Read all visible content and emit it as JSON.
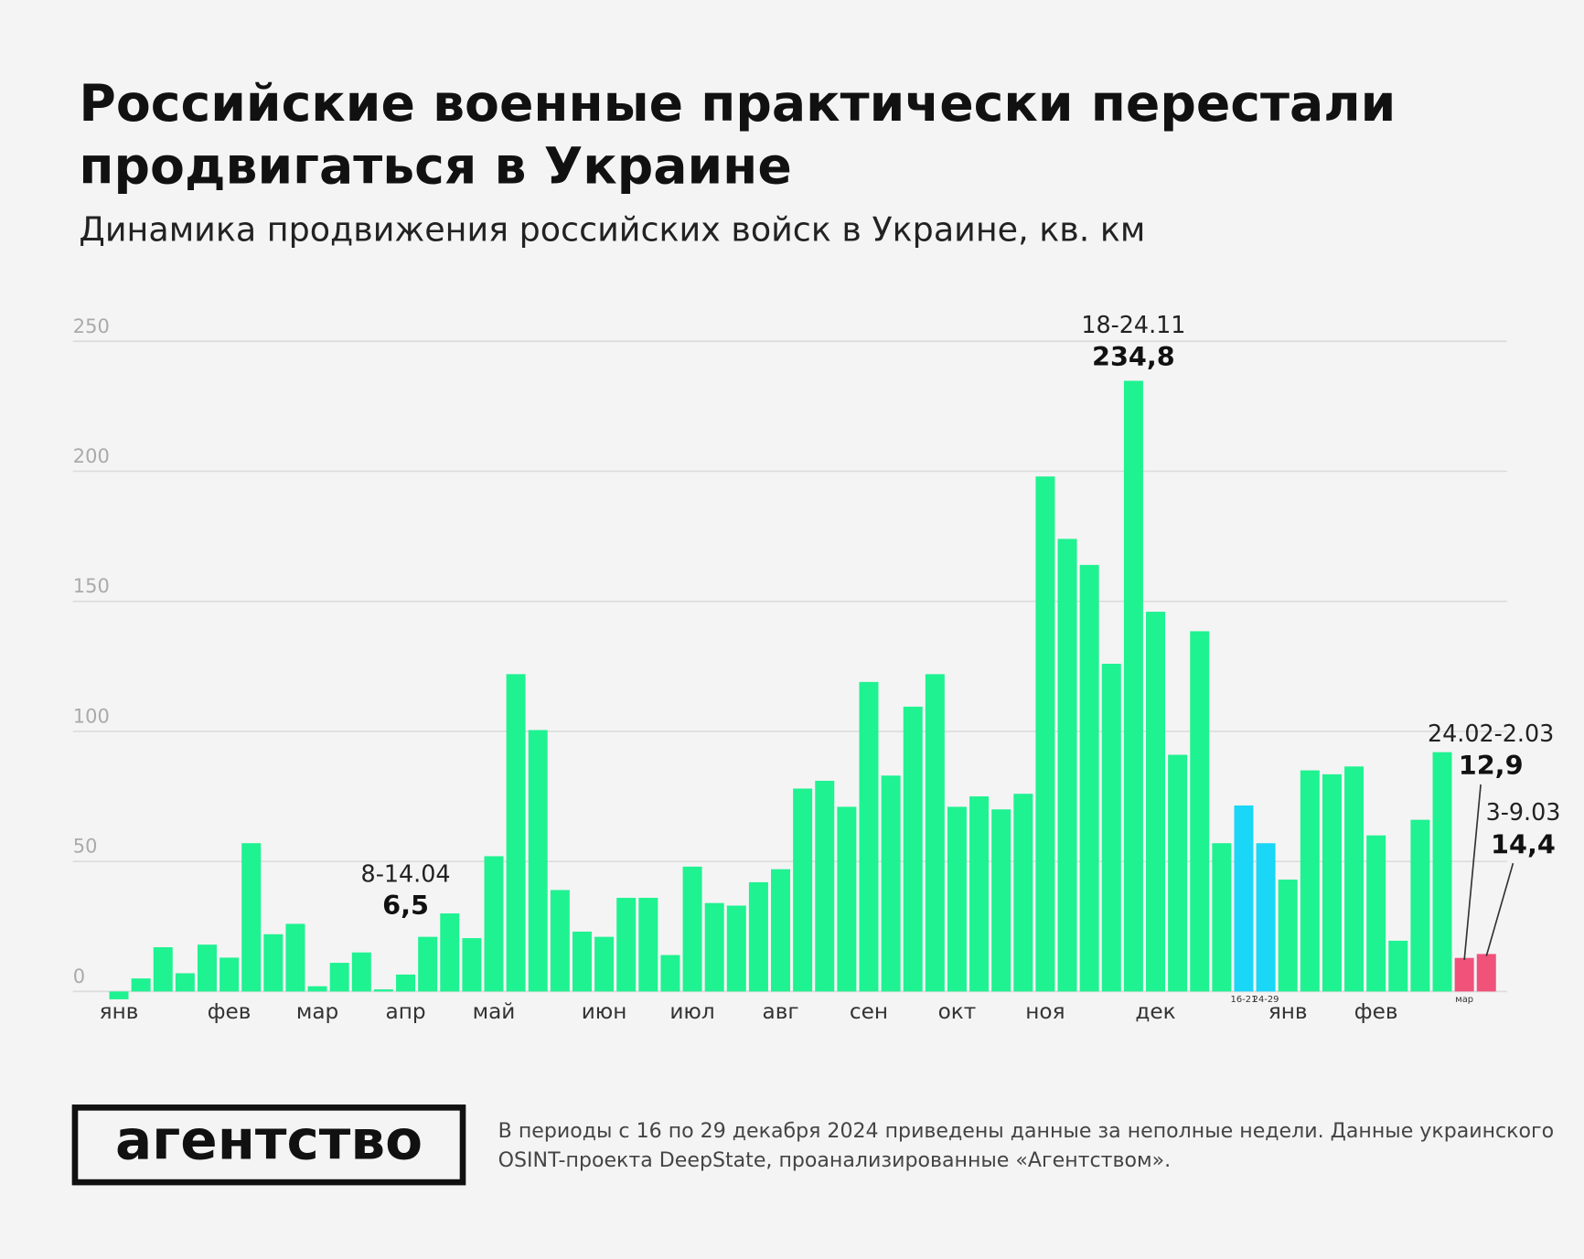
{
  "chart_data": {
    "type": "bar",
    "title": [
      "Российские военные практически перестали",
      "продвигаться в Украине"
    ],
    "subtitle": "Динамика продвижения российских войск в Украине, кв. км",
    "categories": [
      "янв",
      null,
      null,
      null,
      null,
      "фев",
      null,
      null,
      null,
      "мар",
      null,
      null,
      null,
      "апр",
      null,
      null,
      null,
      "май",
      null,
      null,
      null,
      null,
      "июн",
      null,
      null,
      null,
      "июл",
      null,
      null,
      null,
      "авг",
      null,
      null,
      null,
      "сен",
      null,
      null,
      null,
      "окт",
      null,
      null,
      null,
      "ноя",
      null,
      null,
      null,
      null,
      "дек",
      null,
      null,
      null,
      "16-21",
      "24-29",
      "янв",
      null,
      null,
      null,
      "фев",
      null,
      null,
      null,
      "мар",
      null
    ],
    "values": [
      -3,
      5,
      17,
      7,
      18,
      13,
      57,
      22,
      26,
      2,
      11,
      15,
      0.8,
      6.5,
      21,
      30,
      20.5,
      52,
      122,
      100.5,
      39,
      23,
      21,
      36,
      36,
      14,
      48,
      34,
      33,
      42,
      47,
      78,
      81,
      71,
      119,
      83,
      109.5,
      122,
      71,
      75,
      70,
      76,
      198,
      174,
      164,
      126,
      234.8,
      146,
      91,
      138.5,
      57,
      71.5,
      57,
      43,
      85,
      83.5,
      86.5,
      60,
      19.5,
      66,
      92,
      12.9,
      14.4
    ],
    "colors": [
      "#1ff291",
      "#1ff291",
      "#1ff291",
      "#1ff291",
      "#1ff291",
      "#1ff291",
      "#1ff291",
      "#1ff291",
      "#1ff291",
      "#1ff291",
      "#1ff291",
      "#1ff291",
      "#1ff291",
      "#1ff291",
      "#1ff291",
      "#1ff291",
      "#1ff291",
      "#1ff291",
      "#1ff291",
      "#1ff291",
      "#1ff291",
      "#1ff291",
      "#1ff291",
      "#1ff291",
      "#1ff291",
      "#1ff291",
      "#1ff291",
      "#1ff291",
      "#1ff291",
      "#1ff291",
      "#1ff291",
      "#1ff291",
      "#1ff291",
      "#1ff291",
      "#1ff291",
      "#1ff291",
      "#1ff291",
      "#1ff291",
      "#1ff291",
      "#1ff291",
      "#1ff291",
      "#1ff291",
      "#1ff291",
      "#1ff291",
      "#1ff291",
      "#1ff291",
      "#1ff291",
      "#1ff291",
      "#1ff291",
      "#1ff291",
      "#1ff291",
      "#1ad6f7",
      "#1ad6f7",
      "#1ff291",
      "#1ff291",
      "#1ff291",
      "#1ff291",
      "#1ff291",
      "#1ff291",
      "#1ff291",
      "#1ff291",
      "#f0527a",
      "#f0527a"
    ],
    "period_labels": [
      null,
      null,
      null,
      null,
      null,
      null,
      null,
      null,
      null,
      null,
      null,
      null,
      null,
      "8-14.04",
      null,
      null,
      null,
      null,
      null,
      null,
      null,
      null,
      null,
      null,
      null,
      null,
      null,
      null,
      null,
      null,
      null,
      null,
      null,
      null,
      null,
      null,
      null,
      null,
      null,
      null,
      null,
      null,
      null,
      null,
      null,
      null,
      "18-24.11",
      null,
      null,
      null,
      null,
      null,
      null,
      null,
      null,
      null,
      null,
      null,
      null,
      null,
      null,
      "24.02-2.03",
      "3-9.03"
    ],
    "value_labels": [
      null,
      null,
      null,
      null,
      null,
      null,
      null,
      null,
      null,
      null,
      null,
      null,
      null,
      "6,5",
      null,
      null,
      null,
      null,
      null,
      null,
      null,
      null,
      null,
      null,
      null,
      null,
      null,
      null,
      null,
      null,
      null,
      null,
      null,
      null,
      null,
      null,
      null,
      null,
      null,
      null,
      null,
      null,
      null,
      null,
      null,
      null,
      "234,8",
      null,
      null,
      null,
      null,
      null,
      null,
      null,
      null,
      null,
      null,
      null,
      null,
      null,
      null,
      "12,9",
      "14,4"
    ],
    "ylim": [
      0,
      250
    ],
    "yticks": [
      0,
      50,
      100,
      150,
      200,
      250
    ],
    "grid": true
  },
  "footer": {
    "logo": "агентство",
    "note": [
      "В периоды с 16 по 29 декабря 2024 приведены данные за неполные недели. Данные украинского",
      "OSINT-проекта DeepState, проанализированные «Агентством»."
    ]
  }
}
